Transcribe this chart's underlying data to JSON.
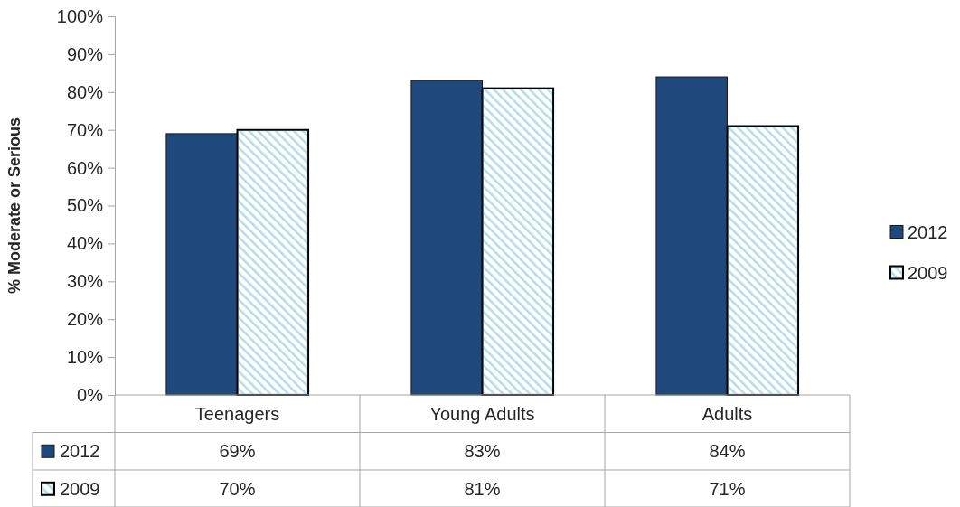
{
  "chart_data": {
    "type": "bar",
    "categories": [
      "Teenagers",
      "Young Adults",
      "Adults"
    ],
    "series": [
      {
        "name": "2012",
        "color": "#1f497d",
        "values": [
          69,
          83,
          84
        ],
        "value_labels": [
          "69%",
          "83%",
          "84%"
        ]
      },
      {
        "name": "2009",
        "color": "#b7dde8",
        "values": [
          70,
          81,
          71
        ],
        "value_labels": [
          "70%",
          "81%",
          "71%"
        ]
      }
    ],
    "ylabel": "% Moderate or Serious",
    "ylim": [
      0,
      100
    ],
    "yticks": [
      {
        "value": 0,
        "label": "0%"
      },
      {
        "value": 10,
        "label": "10%"
      },
      {
        "value": 20,
        "label": "20%"
      },
      {
        "value": 30,
        "label": "30%"
      },
      {
        "value": 40,
        "label": "40%"
      },
      {
        "value": 50,
        "label": "50%"
      },
      {
        "value": 60,
        "label": "60%"
      },
      {
        "value": 70,
        "label": "70%"
      },
      {
        "value": 80,
        "label": "80%"
      },
      {
        "value": 90,
        "label": "90%"
      },
      {
        "value": 100,
        "label": "100%"
      }
    ],
    "legend": "right"
  }
}
